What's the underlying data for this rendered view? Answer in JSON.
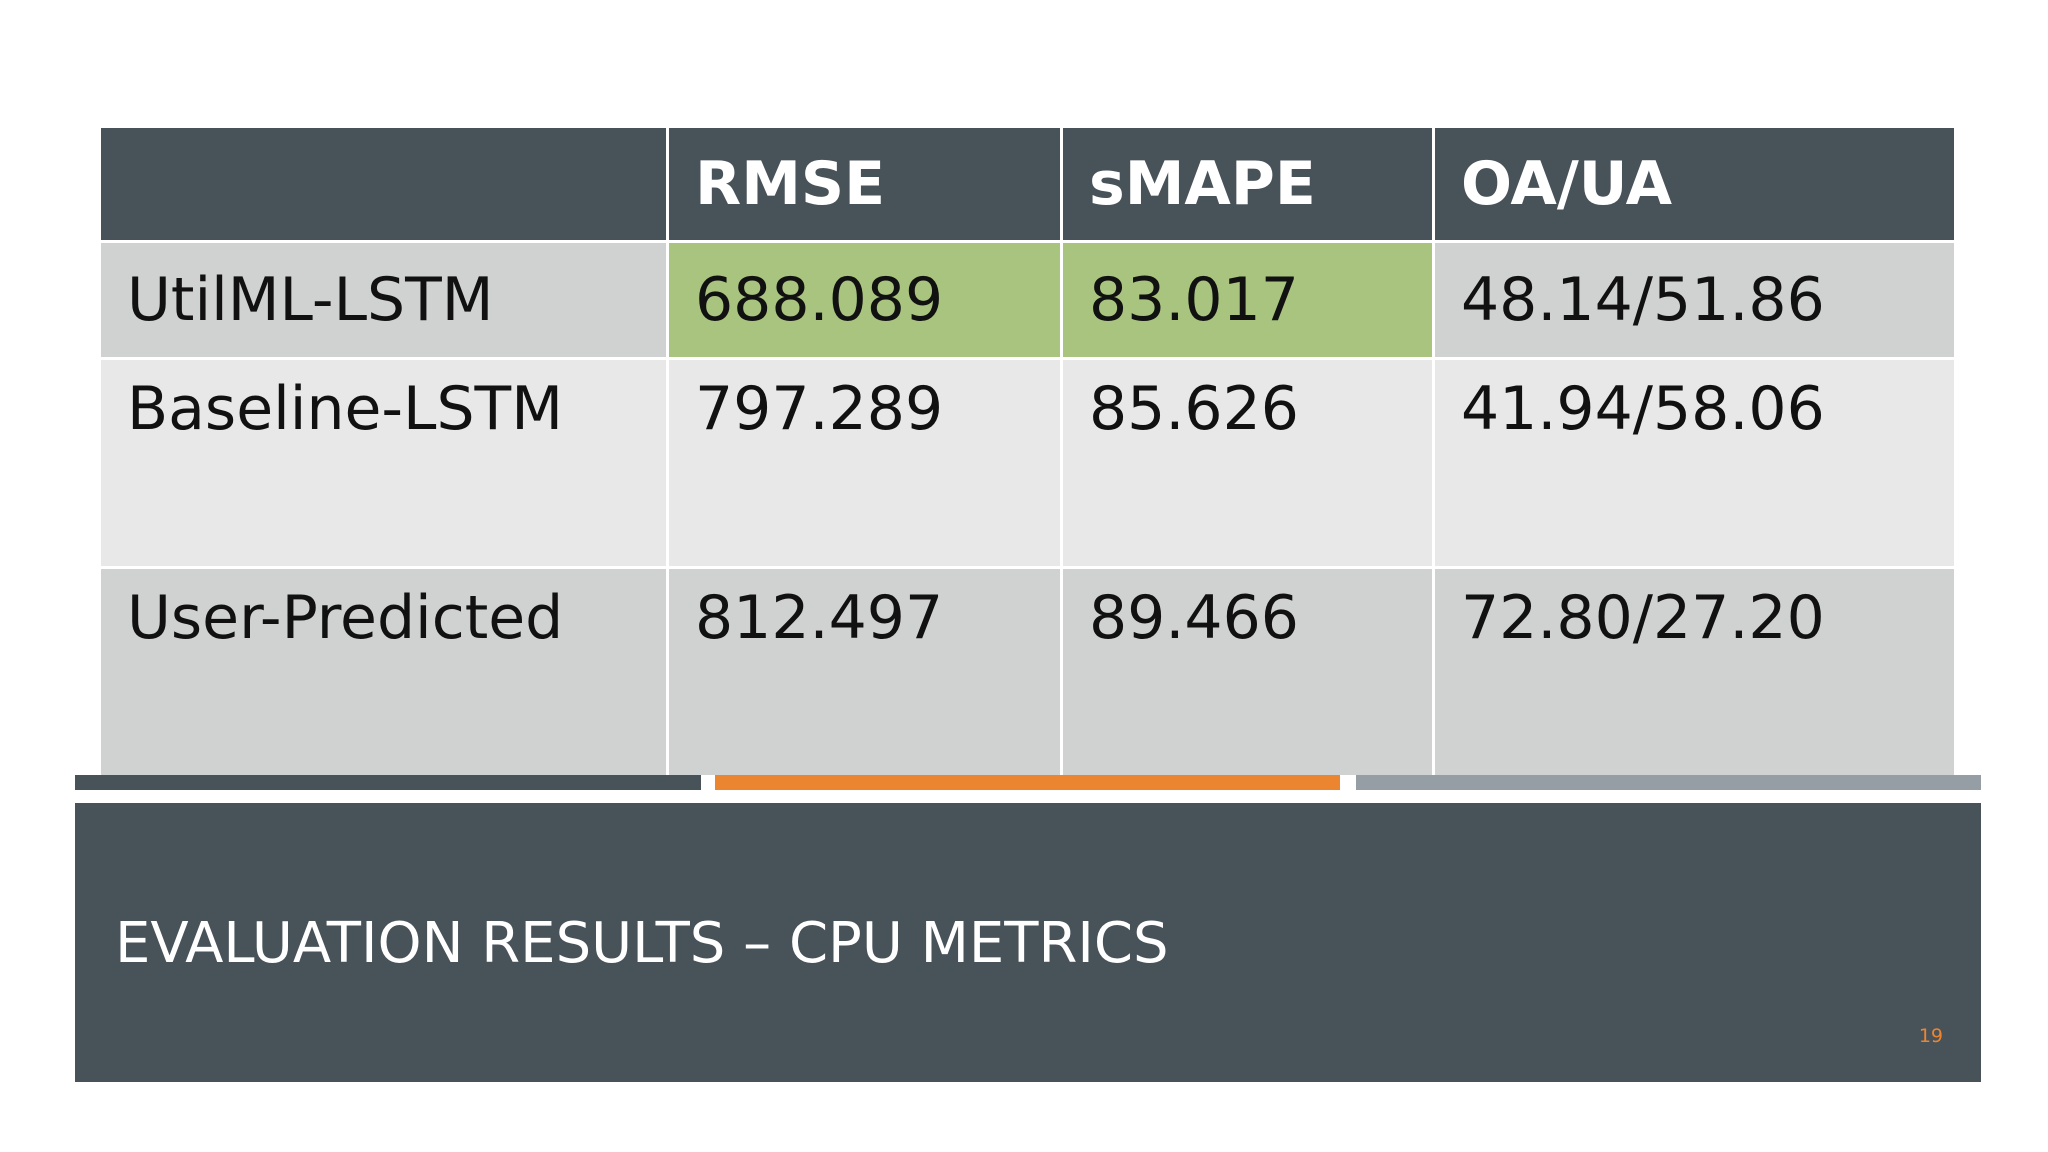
{
  "table": {
    "headers": [
      "",
      "RMSE",
      "sMAPE",
      "OA/UA"
    ],
    "rows": [
      {
        "label": "UtilML-LSTM",
        "rmse": "688.089",
        "smape": "83.017",
        "oaua": "48.14/51.86"
      },
      {
        "label": "Baseline-LSTM",
        "rmse": "797.289",
        "smape": "85.626",
        "oaua": "41.94/58.06"
      },
      {
        "label": "User-Predicted",
        "rmse": "812.497",
        "smape": "89.466",
        "oaua": "72.80/27.20"
      }
    ],
    "highlight_color": "#a8c47e"
  },
  "accent_bars": {
    "colors": [
      "#475259",
      "#ec8530",
      "#959ea5"
    ]
  },
  "title": "EVALUATION RESULTS – CPU METRICS",
  "slide_number": "19"
}
